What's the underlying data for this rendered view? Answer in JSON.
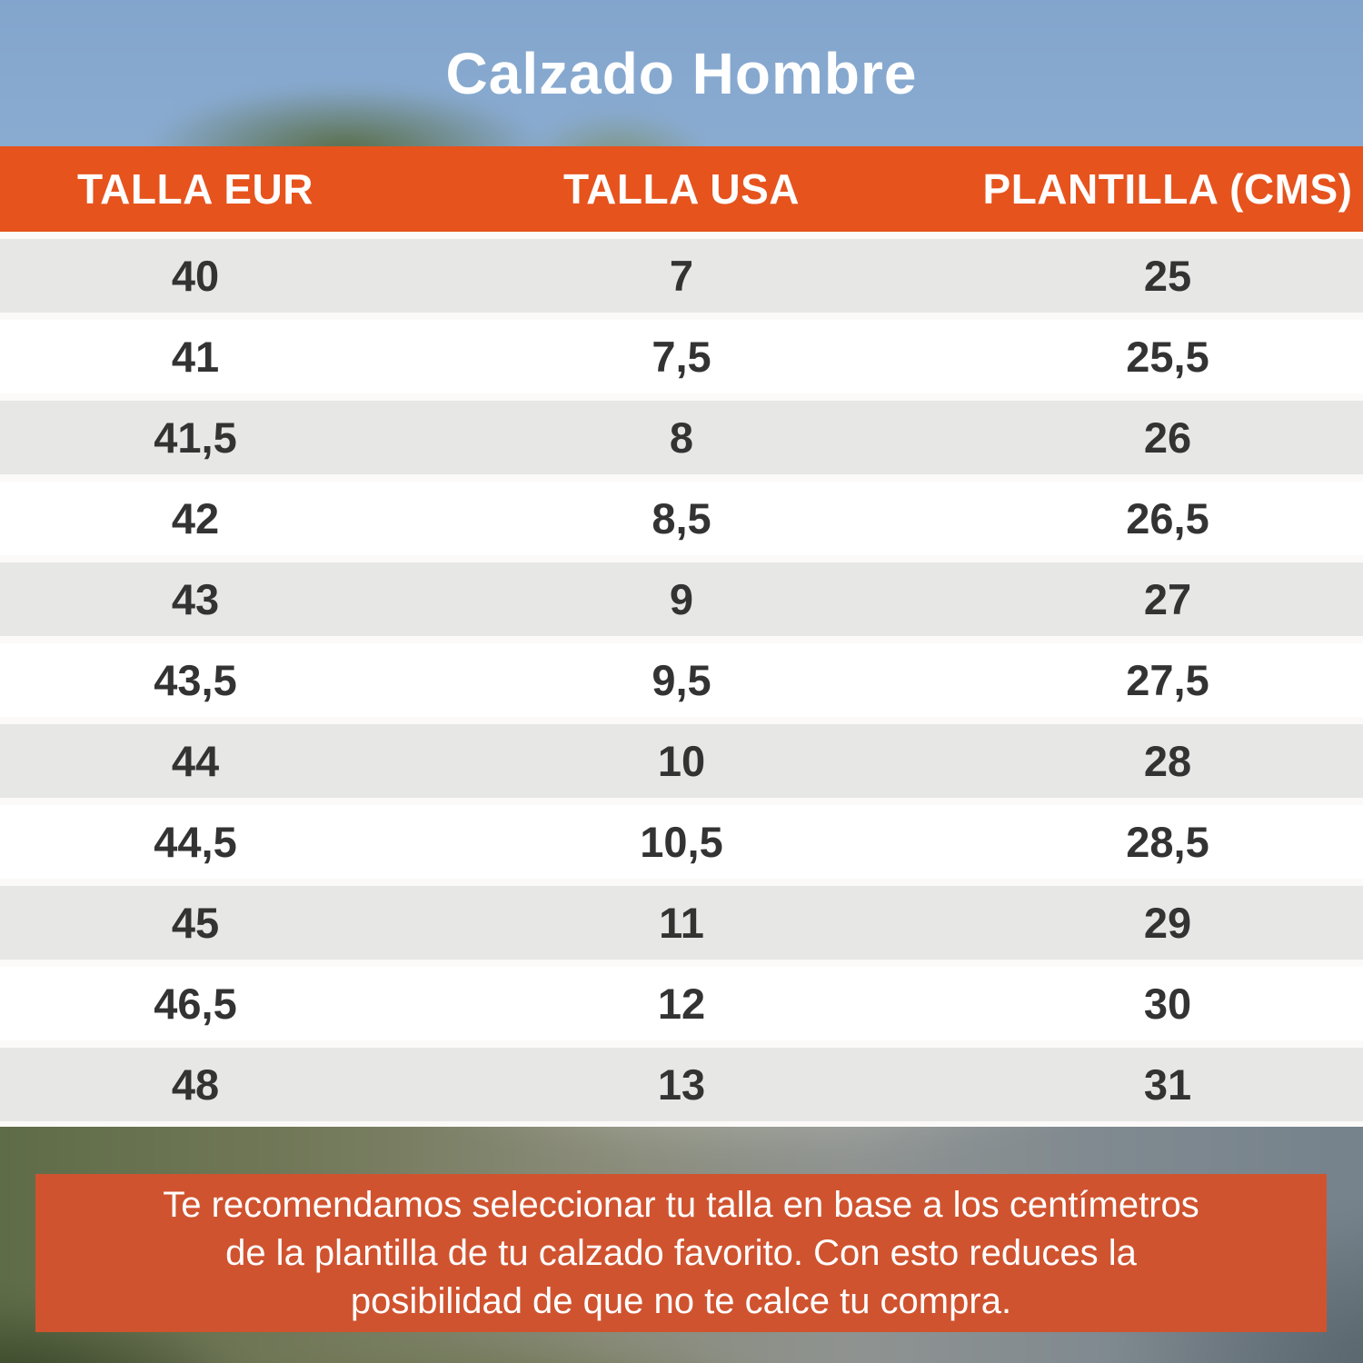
{
  "chart_data": {
    "type": "table",
    "title": "Calzado Hombre",
    "columns": [
      "TALLA EUR",
      "TALLA USA",
      "PLANTILLA (CMS)"
    ],
    "rows": [
      [
        "40",
        "7",
        "25"
      ],
      [
        "41",
        "7,5",
        "25,5"
      ],
      [
        "41,5",
        "8",
        "26"
      ],
      [
        "42",
        "8,5",
        "26,5"
      ],
      [
        "43",
        "9",
        "27"
      ],
      [
        "43,5",
        "9,5",
        "27,5"
      ],
      [
        "44",
        "10",
        "28"
      ],
      [
        "44,5",
        "10,5",
        "28,5"
      ],
      [
        "45",
        "11",
        "29"
      ],
      [
        "46,5",
        "12",
        "30"
      ],
      [
        "48",
        "13",
        "31"
      ]
    ],
    "layout": {
      "striped": true,
      "stripe_order": "gray-first"
    }
  },
  "note": {
    "lines": [
      "Te recomendamos seleccionar tu talla en base a los centímetros",
      "de la plantilla de tu calzado favorito. Con esto reduces la",
      "posibilidad de que no te calce tu compra."
    ]
  },
  "colors": {
    "header_orange": "#e6531d",
    "note_orange": "#d0532f",
    "row_gray": "#e7e7e6",
    "cell_text": "#333333",
    "sky_blue": "#87a9cf",
    "title_text": "#ffffff"
  }
}
